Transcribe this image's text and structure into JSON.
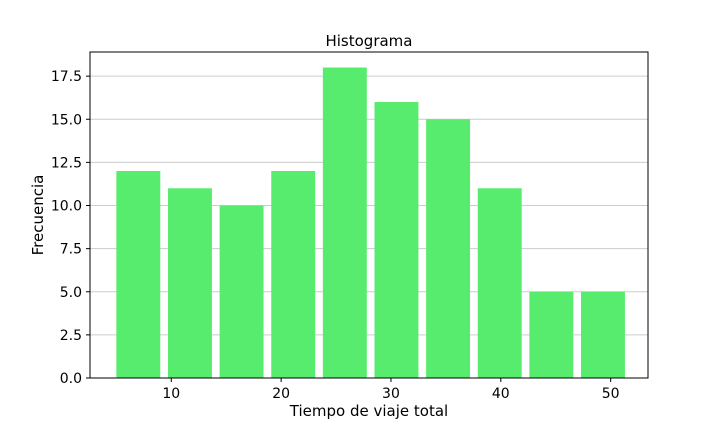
{
  "chart_data": {
    "type": "bar",
    "title": "Histograma",
    "xlabel": "Tiempo de viaje total",
    "ylabel": "Frecuencia",
    "bins": [
      {
        "start": 5.0,
        "end": 9.0,
        "count": 12
      },
      {
        "start": 9.7,
        "end": 13.7,
        "count": 11
      },
      {
        "start": 14.4,
        "end": 18.4,
        "count": 10
      },
      {
        "start": 19.1,
        "end": 23.1,
        "count": 12
      },
      {
        "start": 23.8,
        "end": 27.8,
        "count": 18
      },
      {
        "start": 28.5,
        "end": 32.5,
        "count": 16
      },
      {
        "start": 33.2,
        "end": 37.2,
        "count": 15
      },
      {
        "start": 37.9,
        "end": 41.9,
        "count": 11
      },
      {
        "start": 42.6,
        "end": 46.6,
        "count": 5
      },
      {
        "start": 47.3,
        "end": 51.3,
        "count": 5
      }
    ],
    "xlim": [
      2.6,
      53.4
    ],
    "ylim": [
      0,
      18.9
    ],
    "x_ticks": [
      10,
      20,
      30,
      40,
      50
    ],
    "y_ticks": [
      0.0,
      2.5,
      5.0,
      7.5,
      10.0,
      12.5,
      15.0,
      17.5
    ],
    "y_tick_labels": [
      "0.0",
      "2.5",
      "5.0",
      "7.5",
      "10.0",
      "12.5",
      "15.0",
      "17.5"
    ],
    "bar_color": "#58ec6e",
    "grid": "y",
    "legend": "none"
  }
}
